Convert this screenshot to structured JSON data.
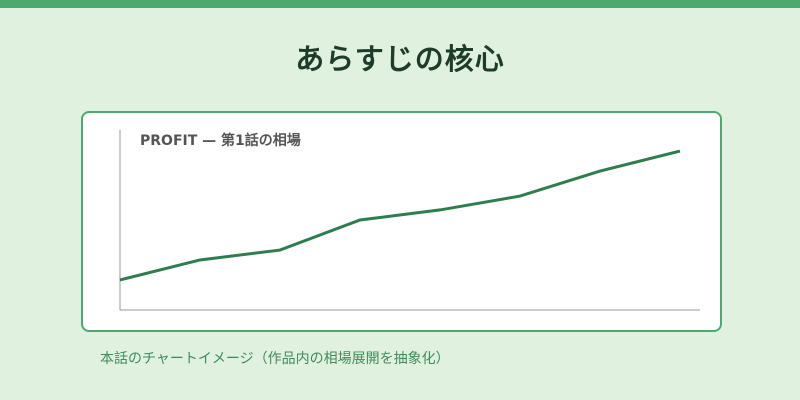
{
  "header": {
    "title": "あらすじの核心"
  },
  "caption": "本話のチャートイメージ（作品内の相場展開を抽象化）",
  "colors": {
    "accent": "#4caa6e",
    "line": "#2e7d4f",
    "background": "#e0f2df"
  },
  "chart_data": {
    "type": "line",
    "title": "PROFIT — 第1話の相場",
    "x": [
      0,
      1,
      2,
      3,
      4,
      5,
      6,
      7
    ],
    "values": [
      16.7,
      27.8,
      33.3,
      50,
      55.6,
      63.3,
      77.2,
      88.3
    ],
    "xlim": [
      0,
      7.25
    ],
    "ylim": [
      0,
      100
    ],
    "grid": false,
    "xlabel": "",
    "ylabel": ""
  }
}
